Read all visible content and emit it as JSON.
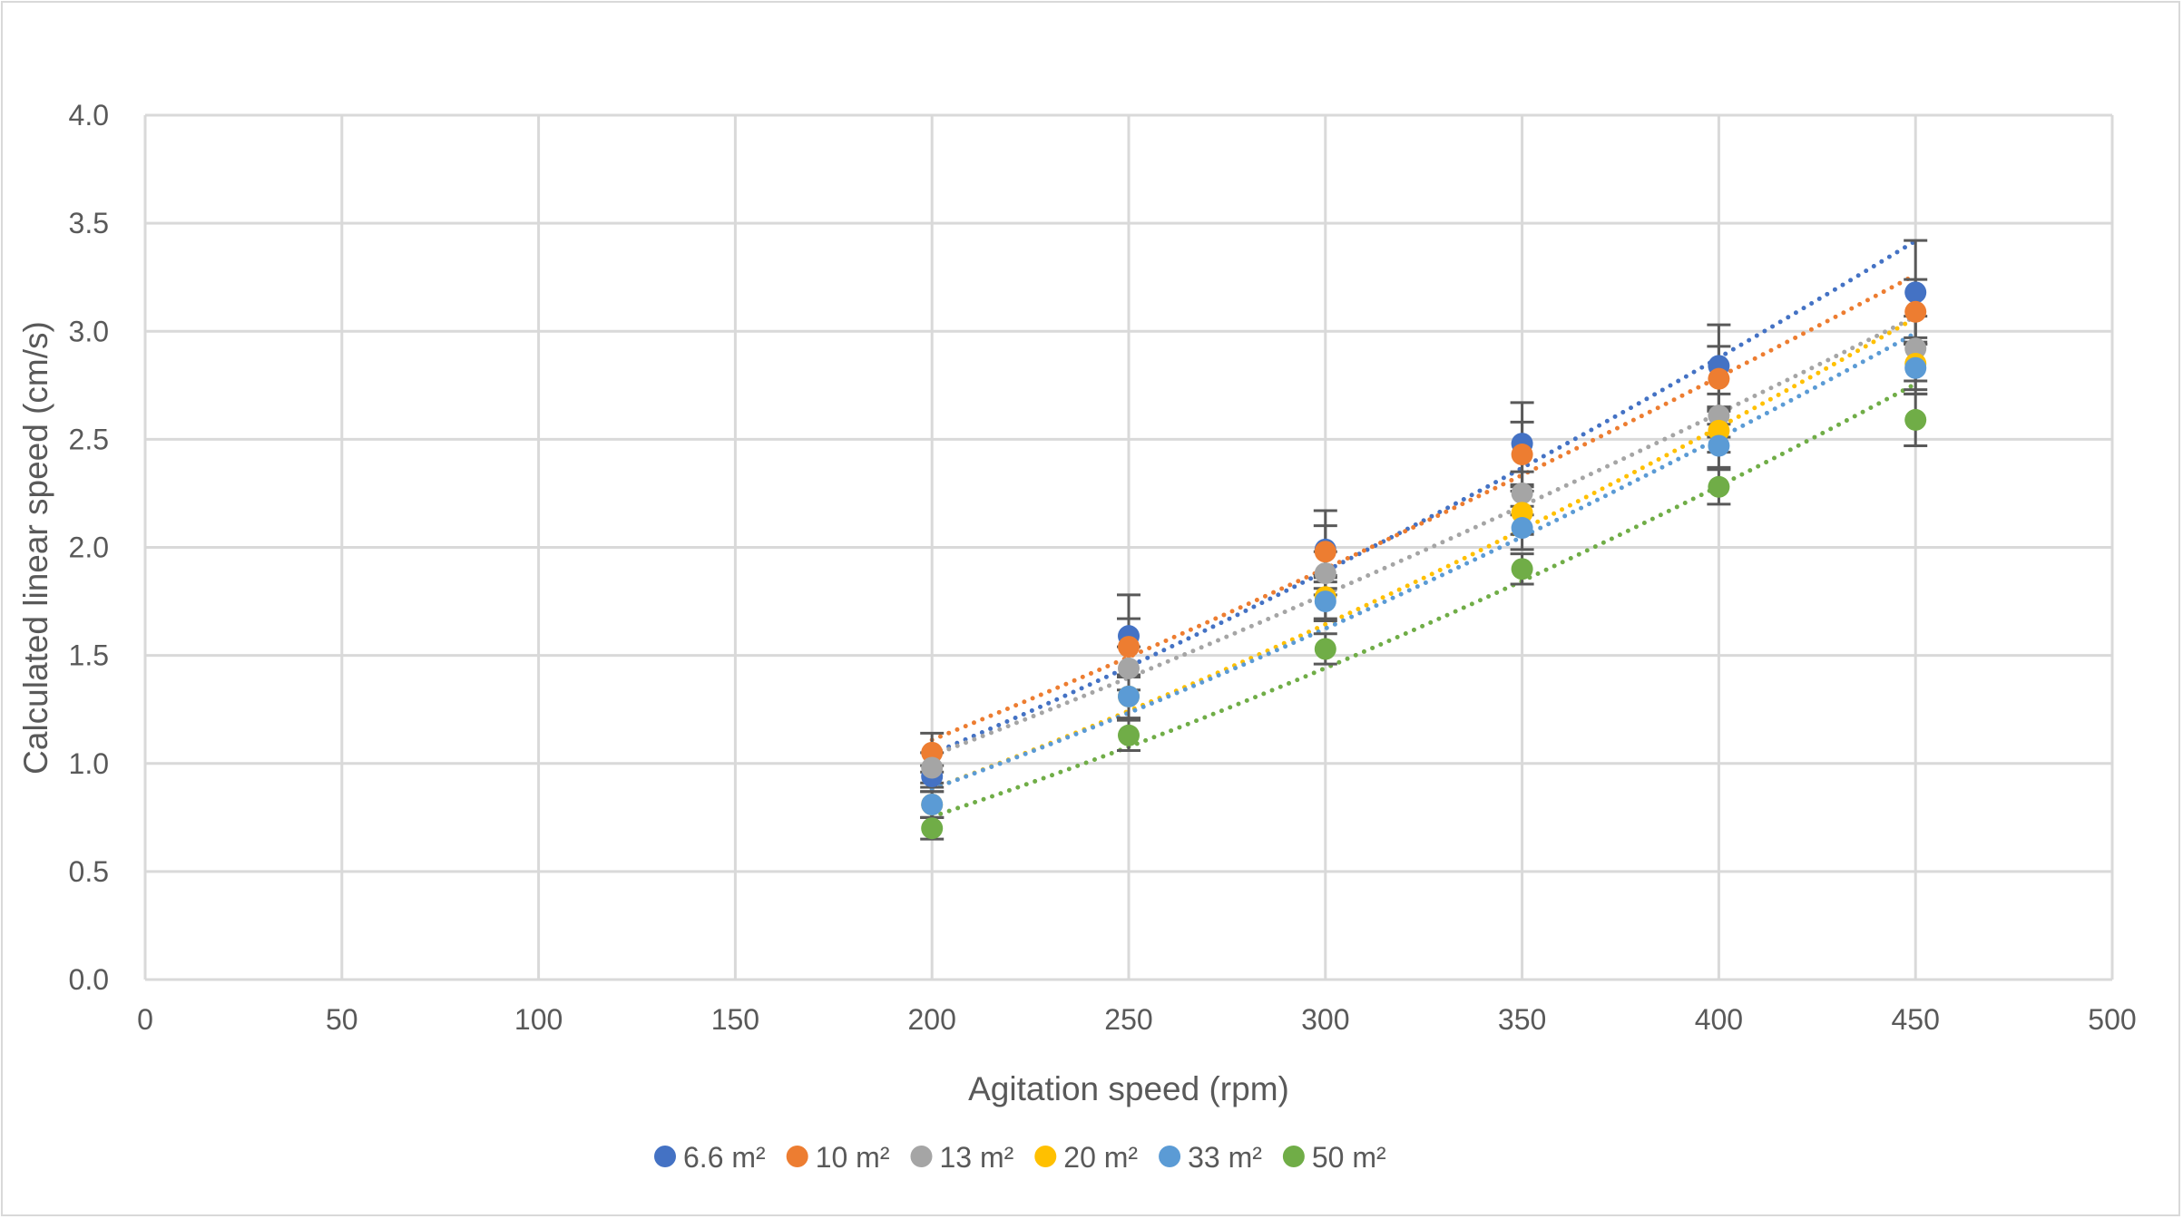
{
  "chart_data": {
    "type": "scatter",
    "title": "",
    "xlabel": "Agitation speed (rpm)",
    "ylabel": "Calculated linear speed (cm/s)",
    "xlim": [
      0,
      500
    ],
    "ylim": [
      0,
      4.0
    ],
    "xticks": [
      "0",
      "50",
      "100",
      "150",
      "200",
      "250",
      "300",
      "350",
      "400",
      "450",
      "500"
    ],
    "yticks": [
      "0.0",
      "0.5",
      "1.0",
      "1.5",
      "2.0",
      "2.5",
      "3.0",
      "3.5",
      "4.0"
    ],
    "grid": true,
    "legend_position": "bottom",
    "trendline": "dotted",
    "x": [
      200,
      250,
      300,
      350,
      400,
      450
    ],
    "series": [
      {
        "name": "6.6 m²",
        "color": "#4472C4",
        "values": [
          0.94,
          1.59,
          1.99,
          2.48,
          2.84,
          3.18
        ],
        "error": [
          0.05,
          0.19,
          0.18,
          0.19,
          0.19,
          0.24
        ]
      },
      {
        "name": "10 m²",
        "color": "#ED7D31",
        "values": [
          1.05,
          1.54,
          1.98,
          2.43,
          2.78,
          3.09
        ],
        "error": [
          0.09,
          0.13,
          0.12,
          0.15,
          0.15,
          0.15
        ]
      },
      {
        "name": "13 m²",
        "color": "#A5A5A5",
        "values": [
          0.98,
          1.44,
          1.88,
          2.25,
          2.61,
          2.92
        ],
        "error": [
          0.07,
          0.1,
          0.1,
          0.1,
          0.1,
          0.15
        ]
      },
      {
        "name": "20 m²",
        "color": "#FFC000",
        "values": [
          0.81,
          1.31,
          1.77,
          2.16,
          2.54,
          2.85
        ],
        "error": [
          0.06,
          0.1,
          0.1,
          0.1,
          0.1,
          0.12
        ]
      },
      {
        "name": "33 m²",
        "color": "#5B9BD5",
        "values": [
          0.81,
          1.31,
          1.75,
          2.09,
          2.47,
          2.83
        ],
        "error": [
          0.06,
          0.1,
          0.09,
          0.1,
          0.1,
          0.12
        ]
      },
      {
        "name": "50 m²",
        "color": "#70AD47",
        "values": [
          0.7,
          1.13,
          1.53,
          1.9,
          2.28,
          2.59
        ],
        "error": [
          0.05,
          0.07,
          0.07,
          0.07,
          0.08,
          0.12
        ]
      }
    ]
  }
}
